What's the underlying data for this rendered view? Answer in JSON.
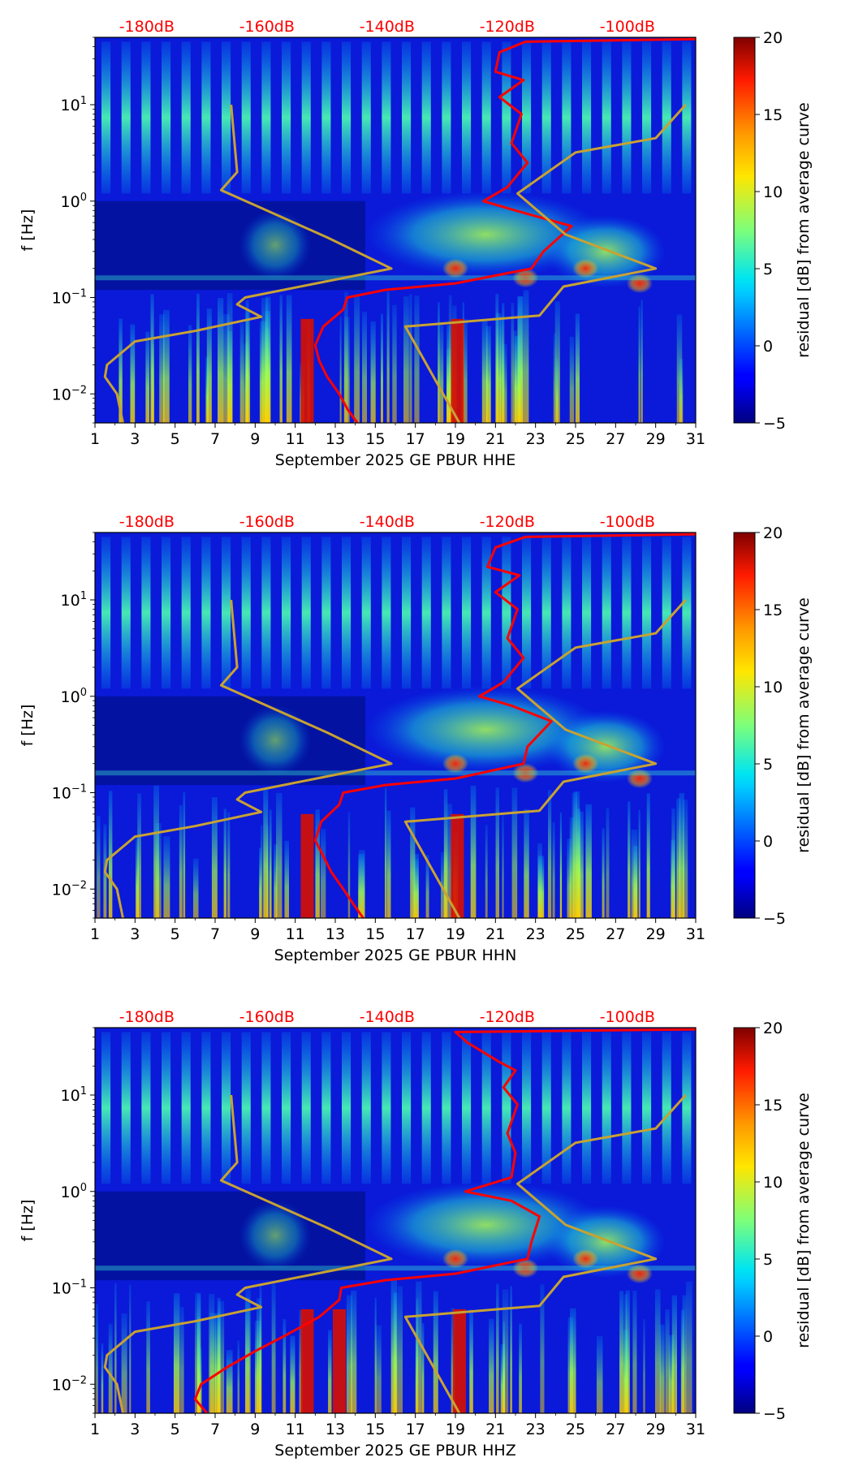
{
  "chart_data": [
    {
      "type": "heatmap",
      "title": "",
      "xlabel": "September 2025 GE PBUR  HHE",
      "ylabel": "f [Hz]",
      "colorbar_label": "residual [dB] from average curve",
      "xlim": [
        1,
        31
      ],
      "ylim": [
        0.005,
        50
      ],
      "yscale": "log",
      "x_ticks": [
        "1",
        "3",
        "5",
        "7",
        "9",
        "11",
        "13",
        "15",
        "17",
        "19",
        "21",
        "23",
        "25",
        "27",
        "29",
        "31"
      ],
      "y_ticks": [
        {
          "label": "10",
          "exp": "−2"
        },
        {
          "label": "10",
          "exp": "−1"
        },
        {
          "label": "10",
          "exp": "0"
        },
        {
          "label": "10",
          "exp": "1"
        }
      ],
      "colorbar_range": [
        -5,
        20
      ],
      "colorbar_ticks": [
        "−5",
        "0",
        "5",
        "10",
        "15",
        "20"
      ],
      "top_axis_labels": [
        "-180dB",
        "-160dB",
        "-140dB",
        "-120dB",
        "-100dB"
      ],
      "colormap": "jet",
      "series": [
        {
          "color": "#ff0000",
          "points": [
            [
              14.1,
              0.005
            ],
            [
              13.6,
              0.007
            ],
            [
              13.2,
              0.01
            ],
            [
              12.6,
              0.015
            ],
            [
              12.2,
              0.022
            ],
            [
              12.0,
              0.032
            ],
            [
              12.4,
              0.05
            ],
            [
              13.4,
              0.075
            ],
            [
              13.6,
              0.1
            ],
            [
              15.5,
              0.12
            ],
            [
              19.0,
              0.14
            ],
            [
              22.8,
              0.2
            ],
            [
              23.4,
              0.3
            ],
            [
              24.8,
              0.55
            ],
            [
              22.0,
              0.8
            ],
            [
              20.4,
              1.0
            ],
            [
              21.6,
              1.4
            ],
            [
              22.6,
              2.5
            ],
            [
              21.8,
              4.0
            ],
            [
              22.3,
              8.0
            ],
            [
              21.2,
              12.0
            ],
            [
              22.4,
              18.0
            ],
            [
              21.0,
              22.0
            ],
            [
              21.2,
              35.0
            ],
            [
              22.5,
              45.0
            ],
            [
              31.0,
              48.0
            ]
          ]
        },
        {
          "color": "#c8a232",
          "points": [
            [
              2.4,
              0.005
            ],
            [
              2.1,
              0.01
            ],
            [
              1.5,
              0.015
            ],
            [
              1.6,
              0.02
            ],
            [
              3.0,
              0.035
            ],
            [
              6.0,
              0.045
            ],
            [
              9.3,
              0.063
            ],
            [
              8.1,
              0.085
            ],
            [
              8.5,
              0.1
            ],
            [
              15.8,
              0.2
            ],
            [
              12.6,
              0.42
            ],
            [
              7.3,
              1.3
            ],
            [
              8.1,
              2.0
            ],
            [
              7.8,
              10.0
            ]
          ]
        },
        {
          "color": "#c8a232",
          "points": [
            [
              19.2,
              0.005
            ],
            [
              16.5,
              0.05
            ],
            [
              23.2,
              0.065
            ],
            [
              24.4,
              0.13
            ],
            [
              29.0,
              0.2
            ],
            [
              24.5,
              0.45
            ],
            [
              22.1,
              1.2
            ],
            [
              25.0,
              3.2
            ],
            [
              29.0,
              4.5
            ],
            [
              30.5,
              10.0
            ]
          ]
        }
      ]
    },
    {
      "type": "heatmap",
      "title": "",
      "xlabel": "September 2025 GE PBUR  HHN",
      "ylabel": "f [Hz]",
      "colorbar_label": "residual [dB] from average curve",
      "xlim": [
        1,
        31
      ],
      "ylim": [
        0.005,
        50
      ],
      "yscale": "log",
      "x_ticks": [
        "1",
        "3",
        "5",
        "7",
        "9",
        "11",
        "13",
        "15",
        "17",
        "19",
        "21",
        "23",
        "25",
        "27",
        "29",
        "31"
      ],
      "y_ticks": [
        {
          "label": "10",
          "exp": "−2"
        },
        {
          "label": "10",
          "exp": "−1"
        },
        {
          "label": "10",
          "exp": "0"
        },
        {
          "label": "10",
          "exp": "1"
        }
      ],
      "colorbar_range": [
        -5,
        20
      ],
      "colorbar_ticks": [
        "−5",
        "0",
        "5",
        "10",
        "15",
        "20"
      ],
      "top_axis_labels": [
        "-180dB",
        "-160dB",
        "-140dB",
        "-120dB",
        "-100dB"
      ],
      "colormap": "jet",
      "series": [
        {
          "color": "#ff0000",
          "points": [
            [
              14.4,
              0.005
            ],
            [
              13.9,
              0.007
            ],
            [
              13.4,
              0.01
            ],
            [
              12.8,
              0.015
            ],
            [
              12.4,
              0.022
            ],
            [
              12.0,
              0.032
            ],
            [
              12.3,
              0.05
            ],
            [
              13.2,
              0.075
            ],
            [
              13.4,
              0.1
            ],
            [
              15.5,
              0.12
            ],
            [
              19.0,
              0.14
            ],
            [
              22.4,
              0.2
            ],
            [
              22.6,
              0.3
            ],
            [
              23.8,
              0.55
            ],
            [
              21.8,
              0.8
            ],
            [
              20.2,
              1.0
            ],
            [
              21.4,
              1.4
            ],
            [
              22.4,
              2.5
            ],
            [
              21.6,
              4.0
            ],
            [
              22.1,
              8.0
            ],
            [
              21.0,
              12.0
            ],
            [
              22.2,
              18.0
            ],
            [
              20.6,
              22.0
            ],
            [
              21.0,
              35.0
            ],
            [
              22.5,
              45.0
            ],
            [
              31.0,
              48.0
            ]
          ]
        },
        {
          "color": "#c8a232",
          "points": [
            [
              2.4,
              0.005
            ],
            [
              2.1,
              0.01
            ],
            [
              1.5,
              0.015
            ],
            [
              1.6,
              0.02
            ],
            [
              3.0,
              0.035
            ],
            [
              6.0,
              0.045
            ],
            [
              9.3,
              0.063
            ],
            [
              8.1,
              0.085
            ],
            [
              8.5,
              0.1
            ],
            [
              15.8,
              0.2
            ],
            [
              12.6,
              0.42
            ],
            [
              7.3,
              1.3
            ],
            [
              8.1,
              2.0
            ],
            [
              7.8,
              10.0
            ]
          ]
        },
        {
          "color": "#c8a232",
          "points": [
            [
              19.2,
              0.005
            ],
            [
              16.5,
              0.05
            ],
            [
              23.2,
              0.065
            ],
            [
              24.4,
              0.13
            ],
            [
              29.0,
              0.2
            ],
            [
              24.5,
              0.45
            ],
            [
              22.1,
              1.2
            ],
            [
              25.0,
              3.2
            ],
            [
              29.0,
              4.5
            ],
            [
              30.5,
              10.0
            ]
          ]
        }
      ]
    },
    {
      "type": "heatmap",
      "title": "",
      "xlabel": "September 2025 GE PBUR  HHZ",
      "ylabel": "f [Hz]",
      "colorbar_label": "residual [dB] from average curve",
      "xlim": [
        1,
        31
      ],
      "ylim": [
        0.005,
        50
      ],
      "yscale": "log",
      "x_ticks": [
        "1",
        "3",
        "5",
        "7",
        "9",
        "11",
        "13",
        "15",
        "17",
        "19",
        "21",
        "23",
        "25",
        "27",
        "29",
        "31"
      ],
      "y_ticks": [
        {
          "label": "10",
          "exp": "−2"
        },
        {
          "label": "10",
          "exp": "−1"
        },
        {
          "label": "10",
          "exp": "0"
        },
        {
          "label": "10",
          "exp": "1"
        }
      ],
      "colorbar_range": [
        -5,
        20
      ],
      "colorbar_ticks": [
        "−5",
        "0",
        "5",
        "10",
        "15",
        "20"
      ],
      "top_axis_labels": [
        "-180dB",
        "-160dB",
        "-140dB",
        "-120dB",
        "-100dB"
      ],
      "colormap": "jet",
      "series": [
        {
          "color": "#ff0000",
          "points": [
            [
              6.6,
              0.005
            ],
            [
              6.0,
              0.007
            ],
            [
              6.3,
              0.01
            ],
            [
              7.6,
              0.015
            ],
            [
              9.0,
              0.022
            ],
            [
              10.5,
              0.032
            ],
            [
              12.2,
              0.05
            ],
            [
              13.2,
              0.075
            ],
            [
              13.3,
              0.1
            ],
            [
              15.5,
              0.12
            ],
            [
              19.0,
              0.14
            ],
            [
              22.6,
              0.2
            ],
            [
              22.8,
              0.3
            ],
            [
              23.2,
              0.55
            ],
            [
              21.8,
              0.8
            ],
            [
              19.5,
              1.0
            ],
            [
              21.8,
              1.4
            ],
            [
              22.0,
              2.5
            ],
            [
              21.6,
              4.0
            ],
            [
              22.1,
              8.0
            ],
            [
              21.4,
              12.0
            ],
            [
              22.0,
              18.0
            ],
            [
              21.2,
              22.0
            ],
            [
              19.6,
              35.0
            ],
            [
              19.0,
              45.0
            ],
            [
              31.0,
              48.0
            ]
          ]
        },
        {
          "color": "#c8a232",
          "points": [
            [
              2.4,
              0.005
            ],
            [
              2.1,
              0.01
            ],
            [
              1.5,
              0.015
            ],
            [
              1.6,
              0.02
            ],
            [
              3.0,
              0.035
            ],
            [
              6.0,
              0.045
            ],
            [
              9.3,
              0.063
            ],
            [
              8.1,
              0.085
            ],
            [
              8.5,
              0.1
            ],
            [
              15.8,
              0.2
            ],
            [
              12.6,
              0.42
            ],
            [
              7.3,
              1.3
            ],
            [
              8.1,
              2.0
            ],
            [
              7.8,
              10.0
            ]
          ]
        },
        {
          "color": "#c8a232",
          "points": [
            [
              19.2,
              0.005
            ],
            [
              16.5,
              0.05
            ],
            [
              23.2,
              0.065
            ],
            [
              24.4,
              0.13
            ],
            [
              29.0,
              0.2
            ],
            [
              24.5,
              0.45
            ],
            [
              22.1,
              1.2
            ],
            [
              25.0,
              3.2
            ],
            [
              29.0,
              4.5
            ],
            [
              30.5,
              10.0
            ]
          ]
        }
      ]
    }
  ]
}
